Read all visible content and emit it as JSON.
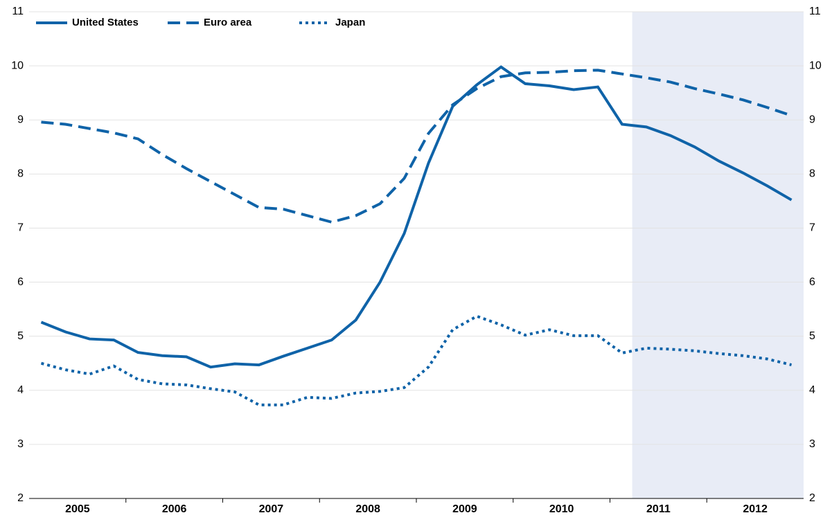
{
  "chart_data": {
    "type": "line",
    "x": [
      2005.125,
      2005.375,
      2005.625,
      2005.875,
      2006.125,
      2006.375,
      2006.625,
      2006.875,
      2007.125,
      2007.375,
      2007.625,
      2007.875,
      2008.125,
      2008.375,
      2008.625,
      2008.875,
      2009.125,
      2009.375,
      2009.625,
      2009.875,
      2010.125,
      2010.375,
      2010.625,
      2010.875,
      2011.125,
      2011.375,
      2011.625,
      2011.875,
      2012.125,
      2012.375,
      2012.625,
      2012.875
    ],
    "series": [
      {
        "name": "United States",
        "color": "#0f63a8",
        "dash": "solid",
        "values": [
          5.26,
          5.08,
          4.95,
          4.93,
          4.7,
          4.64,
          4.62,
          4.43,
          4.49,
          4.47,
          4.63,
          4.78,
          4.93,
          5.3,
          6.0,
          6.9,
          8.2,
          9.25,
          9.65,
          9.98,
          9.67,
          9.63,
          9.56,
          9.61,
          8.92,
          8.87,
          8.71,
          8.5,
          8.24,
          8.02,
          7.78,
          7.52
        ]
      },
      {
        "name": "Euro area",
        "color": "#0f63a8",
        "dash": "dashed",
        "values": [
          8.96,
          8.92,
          8.84,
          8.76,
          8.65,
          8.36,
          8.1,
          7.86,
          7.62,
          7.38,
          7.35,
          7.23,
          7.11,
          7.23,
          7.45,
          7.92,
          8.75,
          9.28,
          9.58,
          9.8,
          9.87,
          9.88,
          9.91,
          9.92,
          9.85,
          9.78,
          9.7,
          9.58,
          9.48,
          9.37,
          9.23,
          9.08
        ]
      },
      {
        "name": "Japan",
        "color": "#0f63a8",
        "dash": "dotted",
        "values": [
          4.5,
          4.38,
          4.3,
          4.45,
          4.2,
          4.12,
          4.1,
          4.03,
          3.97,
          3.73,
          3.73,
          3.87,
          3.85,
          3.95,
          3.98,
          4.05,
          4.43,
          5.12,
          5.37,
          5.21,
          5.02,
          5.12,
          5.01,
          5.01,
          4.69,
          4.78,
          4.76,
          4.73,
          4.68,
          4.64,
          4.58,
          4.47
        ]
      }
    ],
    "xlim": [
      2005,
      2013
    ],
    "xticks": [
      {
        "value": 2005.5,
        "label": "2005"
      },
      {
        "value": 2006.5,
        "label": "2006"
      },
      {
        "value": 2007.5,
        "label": "2007"
      },
      {
        "value": 2008.5,
        "label": "2008"
      },
      {
        "value": 2009.5,
        "label": "2009"
      },
      {
        "value": 2010.5,
        "label": "2010"
      },
      {
        "value": 2011.5,
        "label": "2011"
      },
      {
        "value": 2012.5,
        "label": "2012"
      }
    ],
    "x_minor_ticks": [
      2006,
      2007,
      2008,
      2009,
      2010,
      2011,
      2012
    ],
    "ylim": [
      2,
      11
    ],
    "yticks": [
      2,
      3,
      4,
      5,
      6,
      7,
      8,
      9,
      10,
      11
    ],
    "right_axis": true,
    "grid": true,
    "shaded_region": [
      2011.23,
      2013
    ],
    "shade_color": "#e8ecf6",
    "legend": "top-left"
  }
}
